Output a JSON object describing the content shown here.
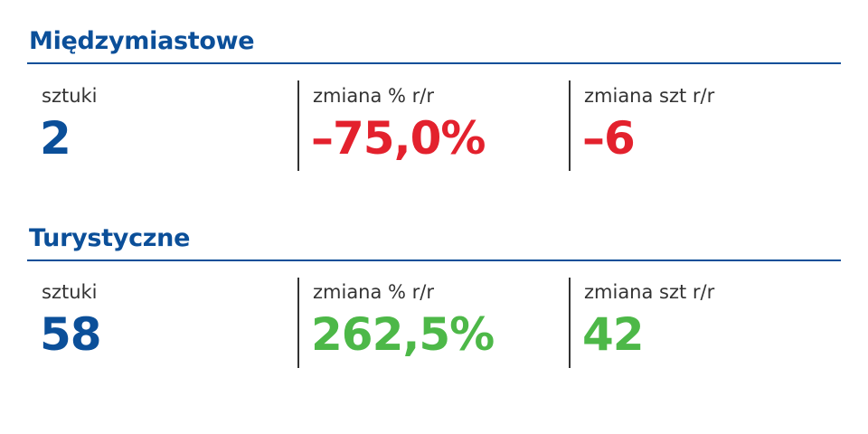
{
  "sections": [
    {
      "title": "Międzymiastowe",
      "metrics": [
        {
          "label": "sztuki",
          "value": "2"
        },
        {
          "label": "zmiana % r/r",
          "value": "–75,0%"
        },
        {
          "label": "zmiana szt r/r",
          "value": "–6"
        }
      ]
    },
    {
      "title": "Turystyczne",
      "metrics": [
        {
          "label": "sztuki",
          "value": "58"
        },
        {
          "label": "zmiana % r/r",
          "value": "262,5%"
        },
        {
          "label": "zmiana szt r/r",
          "value": "42"
        }
      ]
    }
  ]
}
